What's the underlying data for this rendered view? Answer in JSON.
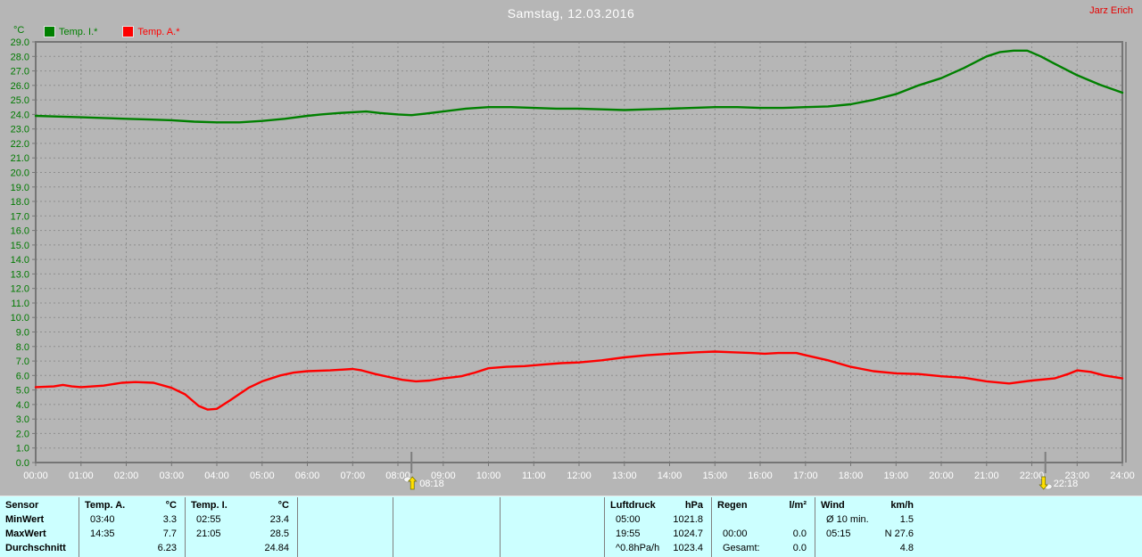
{
  "header": {
    "title": "Samstag, 12.03.2016",
    "attribution": "Jarz Erich"
  },
  "chart_data": {
    "type": "line",
    "title": "Samstag, 12.03.2016",
    "ylabel_unit": "°C",
    "ylim": [
      0,
      29
    ],
    "xlim_hours": [
      0,
      24
    ],
    "grid": "dashed",
    "legend_position": "top-left",
    "y_tick_labels": [
      "29.0",
      "28.0",
      "27.0",
      "26.0",
      "25.0",
      "24.0",
      "23.0",
      "22.0",
      "21.0",
      "20.0",
      "19.0",
      "18.0",
      "17.0",
      "16.0",
      "15.0",
      "14.0",
      "13.0",
      "12.0",
      "11.0",
      "10.0",
      "9.0",
      "8.0",
      "7.0",
      "6.0",
      "5.0",
      "4.0",
      "3.0",
      "2.0",
      "1.0",
      "0.0"
    ],
    "x_tick_labels": [
      "00:00",
      "01:00",
      "02:00",
      "03:00",
      "04:00",
      "05:00",
      "06:00",
      "07:00",
      "08:00",
      "09:00",
      "10:00",
      "11:00",
      "12:00",
      "13:00",
      "14:00",
      "15:00",
      "16:00",
      "17:00",
      "18:00",
      "19:00",
      "20:00",
      "21:00",
      "22:00",
      "23:00",
      "24:00"
    ],
    "series": [
      {
        "name": "Temp. I.*",
        "color": "#008000",
        "points": [
          [
            0,
            23.9
          ],
          [
            0.5,
            23.85
          ],
          [
            1,
            23.8
          ],
          [
            1.5,
            23.75
          ],
          [
            2,
            23.7
          ],
          [
            2.5,
            23.65
          ],
          [
            3,
            23.6
          ],
          [
            3.5,
            23.5
          ],
          [
            4,
            23.45
          ],
          [
            4.5,
            23.45
          ],
          [
            5,
            23.55
          ],
          [
            5.5,
            23.7
          ],
          [
            6,
            23.9
          ],
          [
            6.3,
            24.0
          ],
          [
            6.7,
            24.1
          ],
          [
            7,
            24.15
          ],
          [
            7.3,
            24.2
          ],
          [
            7.6,
            24.1
          ],
          [
            8,
            24.0
          ],
          [
            8.3,
            23.95
          ],
          [
            8.6,
            24.05
          ],
          [
            9,
            24.2
          ],
          [
            9.5,
            24.4
          ],
          [
            10,
            24.5
          ],
          [
            10.5,
            24.5
          ],
          [
            11,
            24.45
          ],
          [
            11.5,
            24.4
          ],
          [
            12,
            24.4
          ],
          [
            12.5,
            24.35
          ],
          [
            13,
            24.3
          ],
          [
            13.5,
            24.35
          ],
          [
            14,
            24.4
          ],
          [
            14.5,
            24.45
          ],
          [
            15,
            24.5
          ],
          [
            15.5,
            24.5
          ],
          [
            16,
            24.45
          ],
          [
            16.5,
            24.45
          ],
          [
            17,
            24.5
          ],
          [
            17.5,
            24.55
          ],
          [
            18,
            24.7
          ],
          [
            18.5,
            25.0
          ],
          [
            19,
            25.4
          ],
          [
            19.5,
            26.0
          ],
          [
            20,
            26.5
          ],
          [
            20.5,
            27.2
          ],
          [
            21,
            28.0
          ],
          [
            21.3,
            28.3
          ],
          [
            21.6,
            28.4
          ],
          [
            21.9,
            28.4
          ],
          [
            22.2,
            28.0
          ],
          [
            22.5,
            27.5
          ],
          [
            23,
            26.7
          ],
          [
            23.5,
            26.05
          ],
          [
            24,
            25.5
          ]
        ]
      },
      {
        "name": "Temp. A.*",
        "color": "#ff0000",
        "points": [
          [
            0,
            5.2
          ],
          [
            0.4,
            5.25
          ],
          [
            0.6,
            5.35
          ],
          [
            0.8,
            5.25
          ],
          [
            1,
            5.2
          ],
          [
            1.5,
            5.3
          ],
          [
            1.9,
            5.5
          ],
          [
            2.2,
            5.55
          ],
          [
            2.6,
            5.5
          ],
          [
            3,
            5.15
          ],
          [
            3.3,
            4.7
          ],
          [
            3.6,
            3.9
          ],
          [
            3.8,
            3.65
          ],
          [
            4,
            3.7
          ],
          [
            4.3,
            4.3
          ],
          [
            4.7,
            5.15
          ],
          [
            5,
            5.6
          ],
          [
            5.4,
            6.0
          ],
          [
            5.7,
            6.2
          ],
          [
            6,
            6.3
          ],
          [
            6.5,
            6.35
          ],
          [
            7,
            6.45
          ],
          [
            7.2,
            6.35
          ],
          [
            7.5,
            6.1
          ],
          [
            7.8,
            5.9
          ],
          [
            8.1,
            5.7
          ],
          [
            8.4,
            5.6
          ],
          [
            8.7,
            5.65
          ],
          [
            9,
            5.8
          ],
          [
            9.4,
            5.95
          ],
          [
            9.7,
            6.2
          ],
          [
            10,
            6.5
          ],
          [
            10.4,
            6.6
          ],
          [
            10.8,
            6.65
          ],
          [
            11.2,
            6.75
          ],
          [
            11.6,
            6.85
          ],
          [
            12,
            6.9
          ],
          [
            12.5,
            7.05
          ],
          [
            13,
            7.25
          ],
          [
            13.5,
            7.4
          ],
          [
            14,
            7.5
          ],
          [
            14.6,
            7.6
          ],
          [
            15,
            7.65
          ],
          [
            15.4,
            7.6
          ],
          [
            15.8,
            7.55
          ],
          [
            16.1,
            7.5
          ],
          [
            16.4,
            7.55
          ],
          [
            16.8,
            7.55
          ],
          [
            17,
            7.4
          ],
          [
            17.5,
            7.05
          ],
          [
            18,
            6.6
          ],
          [
            18.5,
            6.3
          ],
          [
            19,
            6.15
          ],
          [
            19.5,
            6.1
          ],
          [
            20,
            5.95
          ],
          [
            20.5,
            5.85
          ],
          [
            21,
            5.6
          ],
          [
            21.5,
            5.45
          ],
          [
            22,
            5.65
          ],
          [
            22.5,
            5.8
          ],
          [
            22.8,
            6.1
          ],
          [
            23,
            6.35
          ],
          [
            23.3,
            6.25
          ],
          [
            23.6,
            6.0
          ],
          [
            24,
            5.8
          ]
        ]
      }
    ],
    "markers": [
      {
        "label": "08:18",
        "hour": 8.3,
        "type": "sunrise"
      },
      {
        "label": "22:18",
        "hour": 22.3,
        "type": "sunset"
      }
    ]
  },
  "table": {
    "row_labels": [
      "Sensor",
      "MinWert",
      "MaxWert",
      "Durchschnitt"
    ],
    "sections": [
      {
        "header": "Temp. A.",
        "unit": "°C",
        "rows": [
          [
            "03:40",
            "3.3"
          ],
          [
            "14:35",
            "7.7"
          ],
          [
            "",
            "6.23"
          ]
        ]
      },
      {
        "header": "Temp. I.",
        "unit": "°C",
        "rows": [
          [
            "02:55",
            "23.4"
          ],
          [
            "21:05",
            "28.5"
          ],
          [
            "",
            "24.84"
          ]
        ]
      },
      {
        "header": "",
        "unit": "",
        "rows": [
          [
            "",
            ""
          ],
          [
            "",
            ""
          ],
          [
            "",
            ""
          ]
        ]
      },
      {
        "header": "",
        "unit": "",
        "rows": [
          [
            "",
            ""
          ],
          [
            "",
            ""
          ],
          [
            "",
            ""
          ]
        ]
      },
      {
        "header": "",
        "unit": "",
        "rows": [
          [
            "",
            ""
          ],
          [
            "",
            ""
          ],
          [
            "",
            ""
          ]
        ]
      },
      {
        "header": "Luftdruck",
        "unit": "hPa",
        "rows": [
          [
            "05:00",
            "1021.8"
          ],
          [
            "19:55",
            "1024.7"
          ],
          [
            "^0.8hPa/h",
            "1023.4"
          ]
        ]
      },
      {
        "header": "Regen",
        "unit": "l/m²",
        "rows": [
          [
            "",
            ""
          ],
          [
            "00:00",
            "0.0"
          ],
          [
            "Gesamt:",
            "0.0"
          ]
        ]
      },
      {
        "header": "Wind",
        "unit": "km/h",
        "rows": [
          [
            "Ø 10 min.",
            "1.5"
          ],
          [
            "05:15",
            "N 27.6"
          ],
          [
            "",
            "4.8"
          ]
        ]
      }
    ]
  },
  "colors": {
    "background": "#b6b6b6",
    "plot_border": "#757575",
    "grid": "#8e8e8e",
    "y_label": "#007a00",
    "x_label": "#ffffff",
    "title": "#ffffff",
    "attribution": "#e60000",
    "table_bg": "#ccffff",
    "table_text": "#000000",
    "table_border": "#808080",
    "sun_marker": "#ffdf00"
  }
}
